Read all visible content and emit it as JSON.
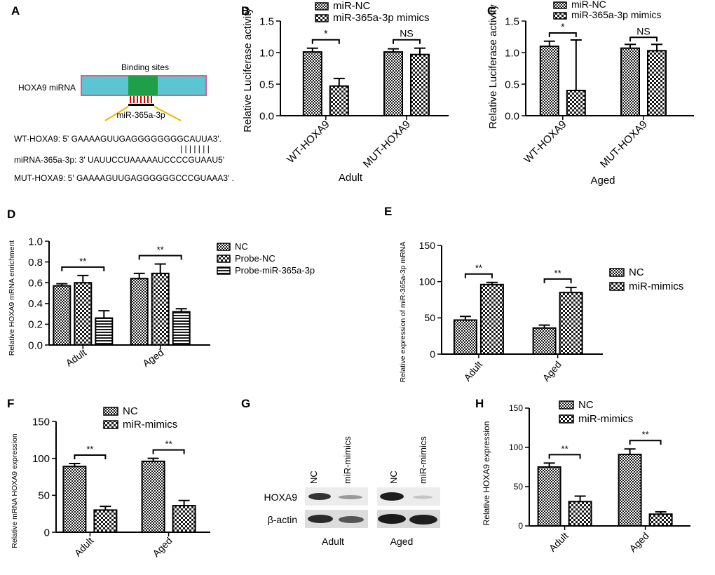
{
  "colors": {
    "bar_fill": "#d0d0d0",
    "axis": "#000000",
    "rna_fill": "#5bc6d2",
    "rna_border": "#e05a9a",
    "binding_fill": "#1f9f48",
    "leader": "#f0b400",
    "site_tick": "#e00000"
  },
  "panels": {
    "A": {
      "letter": "A",
      "mirna_label": "HOXA9 miRNA",
      "binding_label": "Binding sites",
      "mir_label": "miR-365a-3p",
      "wt_line": "WT-HOXA9: 5' GAAAAGUUGAGGGGGGGGCAUUA3'.",
      "pair_line": "| | | | | | |",
      "mir_line": "miRNA-365a-3p: 3' UAUUCCUAAAAAUCCCCGUAAU5'",
      "mut_line": "MUT-HOXA9: 5' GAAAAGUUGAGGGGGGCCCGUAAA3' ."
    },
    "B": {
      "letter": "B"
    },
    "C": {
      "letter": "C"
    },
    "D": {
      "letter": "D"
    },
    "E": {
      "letter": "E"
    },
    "F": {
      "letter": "F"
    },
    "G": {
      "letter": "G",
      "lanes": [
        "NC",
        "miR-mimics",
        "NC",
        "miR-mimics"
      ],
      "rows": [
        "HOXA9",
        "β-actin"
      ],
      "groups": [
        "Adult",
        "Aged"
      ]
    },
    "H": {
      "letter": "H"
    }
  },
  "chart_data": [
    {
      "id": "B",
      "type": "bar",
      "ylabel": "Relative Luciferase activity",
      "xlabel": "Adult",
      "ylim": [
        0,
        1.5
      ],
      "yticks": [
        "0.0",
        "0.5",
        "1.0",
        "1.5"
      ],
      "categories": [
        "WT-HOXA9",
        "MUT-HOXA9"
      ],
      "series": [
        {
          "name": "miR-NC",
          "pattern": "p0",
          "values": [
            1.01,
            1.01
          ],
          "errors": [
            0.06,
            0.05
          ]
        },
        {
          "name": "miR-365a-3p mimics",
          "pattern": "p1",
          "values": [
            0.47,
            0.97
          ],
          "errors": [
            0.12,
            0.1
          ]
        }
      ],
      "significance": [
        "*",
        "NS"
      ]
    },
    {
      "id": "C",
      "type": "bar",
      "ylabel": "Relative Luciferase activity",
      "xlabel": "Aged",
      "ylim": [
        0,
        1.5
      ],
      "yticks": [
        "0.0",
        "0.5",
        "1.0",
        "1.5"
      ],
      "categories": [
        "WT-HOXA9",
        "MUT-HOXA9"
      ],
      "series": [
        {
          "name": "miR-NC",
          "pattern": "p0",
          "values": [
            1.1,
            1.07
          ],
          "errors": [
            0.08,
            0.06
          ]
        },
        {
          "name": "miR-365a-3p mimics",
          "pattern": "p1",
          "values": [
            0.4,
            1.03
          ],
          "errors": [
            0.8,
            0.1
          ]
        }
      ],
      "significance": [
        "*",
        "NS"
      ]
    },
    {
      "id": "D",
      "type": "bar",
      "ylabel": "Relative HOXA9 mRNA enrichment",
      "xlabel": "",
      "ylim": [
        0,
        1.0
      ],
      "yticks": [
        "0.0",
        "0.2",
        "0.4",
        "0.6",
        "0.8",
        "1.0"
      ],
      "categories": [
        "Adult",
        "Aged"
      ],
      "series": [
        {
          "name": "NC",
          "pattern": "p0",
          "values": [
            0.57,
            0.64
          ],
          "errors": [
            0.02,
            0.05
          ]
        },
        {
          "name": "Probe-NC",
          "pattern": "p1",
          "values": [
            0.6,
            0.69
          ],
          "errors": [
            0.07,
            0.09
          ]
        },
        {
          "name": "Probe-miR-365a-3p",
          "pattern": "p2",
          "values": [
            0.26,
            0.32
          ],
          "errors": [
            0.07,
            0.03
          ]
        }
      ],
      "significance": [
        "**",
        "**"
      ]
    },
    {
      "id": "E",
      "type": "bar",
      "ylabel": "Relative expression of miR-365a-3p mRNA",
      "xlabel": "",
      "ylim": [
        0,
        150
      ],
      "yticks": [
        "0",
        "50",
        "100",
        "150"
      ],
      "categories": [
        "Adult",
        "Aged"
      ],
      "series": [
        {
          "name": "NC",
          "pattern": "p0",
          "values": [
            47,
            36
          ],
          "errors": [
            5,
            4
          ]
        },
        {
          "name": "miR-mimics",
          "pattern": "p1",
          "values": [
            96,
            85
          ],
          "errors": [
            3,
            7
          ]
        }
      ],
      "significance": [
        "**",
        "**"
      ]
    },
    {
      "id": "F",
      "type": "bar",
      "ylabel": "Relative mRNA HOXA9 expression",
      "xlabel": "",
      "ylim": [
        0,
        150
      ],
      "yticks": [
        "0",
        "50",
        "100",
        "150"
      ],
      "categories": [
        "Adult",
        "Aged"
      ],
      "series": [
        {
          "name": "NC",
          "pattern": "p0",
          "values": [
            89,
            96
          ],
          "errors": [
            4,
            4
          ]
        },
        {
          "name": "miR-mimics",
          "pattern": "p1",
          "values": [
            30,
            36
          ],
          "errors": [
            5,
            7
          ]
        }
      ],
      "significance": [
        "**",
        "**"
      ]
    },
    {
      "id": "H",
      "type": "bar",
      "ylabel": "Relative HOXA9 expression",
      "xlabel": "",
      "ylim": [
        0,
        150
      ],
      "yticks": [
        "0",
        "50",
        "100",
        "150"
      ],
      "categories": [
        "Adult",
        "Aged"
      ],
      "series": [
        {
          "name": "NC",
          "pattern": "p0",
          "values": [
            75,
            91
          ],
          "errors": [
            5,
            7
          ]
        },
        {
          "name": "miR-mimics",
          "pattern": "p1",
          "values": [
            31,
            15
          ],
          "errors": [
            7,
            3
          ]
        }
      ],
      "significance": [
        "**",
        "**"
      ]
    }
  ]
}
